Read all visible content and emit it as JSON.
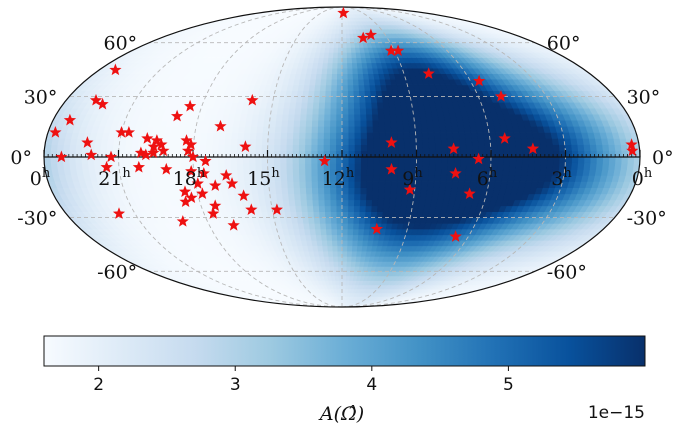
{
  "chart_data": {
    "type": "scatter",
    "projection": "mollweide",
    "grid": true,
    "lon_tick_labels": [
      {
        "ra_h": 0,
        "text": "0",
        "sup": "h"
      },
      {
        "ra_h": 21,
        "text": "21",
        "sup": "h"
      },
      {
        "ra_h": 18,
        "text": "18",
        "sup": "h"
      },
      {
        "ra_h": 15,
        "text": "15",
        "sup": "h"
      },
      {
        "ra_h": 12,
        "text": "12",
        "sup": "h"
      },
      {
        "ra_h": 9,
        "text": "9",
        "sup": "h"
      },
      {
        "ra_h": 6,
        "text": "6",
        "sup": "h"
      },
      {
        "ra_h": 3,
        "text": "3",
        "sup": "h"
      },
      {
        "ra_h": 0,
        "text": "0",
        "sup": "h"
      }
    ],
    "lat_tick_labels": [
      "60°",
      "30°",
      "0°",
      "-30°",
      "-60°"
    ],
    "heatmap": {
      "colormap": "Blues",
      "min": 1.6e-15,
      "max": 6e-15,
      "blobs": [
        {
          "ra_h": 7.5,
          "dec": -5,
          "value": 5.9e-15,
          "width_h": 3.5,
          "width_deg": 22
        },
        {
          "ra_h": 8.5,
          "dec": 40,
          "value": 4.6e-15,
          "width_h": 2.5,
          "width_deg": 20
        },
        {
          "ra_h": 4.5,
          "dec": 10,
          "value": 3.8e-15,
          "width_h": 3.0,
          "width_deg": 30
        },
        {
          "ra_h": 9.0,
          "dec": -40,
          "value": 3.6e-15,
          "width_h": 3.0,
          "width_deg": 25
        },
        {
          "ra_h": 10.5,
          "dec": 10,
          "value": 2.8e-15,
          "width_h": 2.5,
          "width_deg": 40
        },
        {
          "ra_h": 1.5,
          "dec": -20,
          "value": 2.2e-15,
          "width_h": 2.0,
          "width_deg": 25
        }
      ]
    },
    "points": [
      {
        "ra_h": 11.8,
        "dec": 82
      },
      {
        "ra_h": 10.6,
        "dec": 63
      },
      {
        "ra_h": 10.0,
        "dec": 65
      },
      {
        "ra_h": 9.2,
        "dec": 55
      },
      {
        "ra_h": 8.8,
        "dec": 55
      },
      {
        "ra_h": 7.8,
        "dec": 42
      },
      {
        "ra_h": 5.6,
        "dec": 38
      },
      {
        "ra_h": 5.0,
        "dec": 30
      },
      {
        "ra_h": 23.2,
        "dec": 44
      },
      {
        "ra_h": 15.9,
        "dec": 28
      },
      {
        "ra_h": 22.7,
        "dec": 28
      },
      {
        "ra_h": 22.3,
        "dec": 26
      },
      {
        "ra_h": 18.5,
        "dec": 25
      },
      {
        "ra_h": 18.9,
        "dec": 20
      },
      {
        "ra_h": 17.0,
        "dec": 15
      },
      {
        "ra_h": 23.3,
        "dec": 18
      },
      {
        "ra_h": 23.7,
        "dec": 12
      },
      {
        "ra_h": 22.3,
        "dec": 7
      },
      {
        "ra_h": 21.0,
        "dec": 12
      },
      {
        "ra_h": 20.7,
        "dec": 12
      },
      {
        "ra_h": 19.9,
        "dec": 9
      },
      {
        "ra_h": 19.5,
        "dec": 8
      },
      {
        "ra_h": 19.3,
        "dec": 6
      },
      {
        "ra_h": 19.6,
        "dec": 5
      },
      {
        "ra_h": 18.3,
        "dec": 8
      },
      {
        "ra_h": 18.1,
        "dec": 6
      },
      {
        "ra_h": 15.9,
        "dec": 5
      },
      {
        "ra_h": 23.3,
        "dec": 0
      },
      {
        "ra_h": 22.1,
        "dec": 1
      },
      {
        "ra_h": 21.3,
        "dec": 0
      },
      {
        "ra_h": 20.1,
        "dec": 2
      },
      {
        "ra_h": 19.9,
        "dec": 1
      },
      {
        "ra_h": 19.6,
        "dec": 2
      },
      {
        "ra_h": 19.2,
        "dec": 3
      },
      {
        "ra_h": 18.2,
        "dec": 3
      },
      {
        "ra_h": 18.0,
        "dec": 0
      },
      {
        "ra_h": 17.5,
        "dec": -2
      },
      {
        "ra_h": 12.7,
        "dec": -2
      },
      {
        "ra_h": 10.0,
        "dec": 7
      },
      {
        "ra_h": 7.5,
        "dec": 4
      },
      {
        "ra_h": 5.4,
        "dec": 9
      },
      {
        "ra_h": 4.3,
        "dec": 4
      },
      {
        "ra_h": 0.3,
        "dec": 6
      },
      {
        "ra_h": 0.3,
        "dec": 3
      },
      {
        "ra_h": 6.5,
        "dec": -1
      },
      {
        "ra_h": 21.5,
        "dec": -5
      },
      {
        "ra_h": 20.2,
        "dec": -5
      },
      {
        "ra_h": 19.1,
        "dec": -6
      },
      {
        "ra_h": 18.1,
        "dec": -7
      },
      {
        "ra_h": 17.6,
        "dec": -8
      },
      {
        "ra_h": 16.7,
        "dec": -9
      },
      {
        "ra_h": 10.0,
        "dec": -6
      },
      {
        "ra_h": 7.4,
        "dec": -8
      },
      {
        "ra_h": 17.9,
        "dec": -13
      },
      {
        "ra_h": 17.2,
        "dec": -14
      },
      {
        "ra_h": 16.5,
        "dec": -13
      },
      {
        "ra_h": 18.5,
        "dec": -17
      },
      {
        "ra_h": 17.8,
        "dec": -18
      },
      {
        "ra_h": 16.1,
        "dec": -19
      },
      {
        "ra_h": 9.2,
        "dec": -16
      },
      {
        "ra_h": 6.7,
        "dec": -18
      },
      {
        "ra_h": 18.3,
        "dec": -20
      },
      {
        "ra_h": 18.6,
        "dec": -22
      },
      {
        "ra_h": 17.4,
        "dec": -24
      },
      {
        "ra_h": 17.6,
        "dec": -28
      },
      {
        "ra_h": 15.9,
        "dec": -26
      },
      {
        "ra_h": 14.8,
        "dec": -26
      },
      {
        "ra_h": 21.7,
        "dec": -28
      },
      {
        "ra_h": 19.1,
        "dec": -32
      },
      {
        "ra_h": 16.9,
        "dec": -34
      },
      {
        "ra_h": 10.4,
        "dec": -36
      },
      {
        "ra_h": 6.6,
        "dec": -40
      }
    ],
    "point_color": "#ee1111",
    "colorbar": {
      "ticks": [
        2,
        3,
        4,
        5
      ],
      "min": 1.6,
      "max": 6.0,
      "label": "A(Ω̂)",
      "offset_text": "1e−15",
      "colormap": "Blues"
    }
  }
}
